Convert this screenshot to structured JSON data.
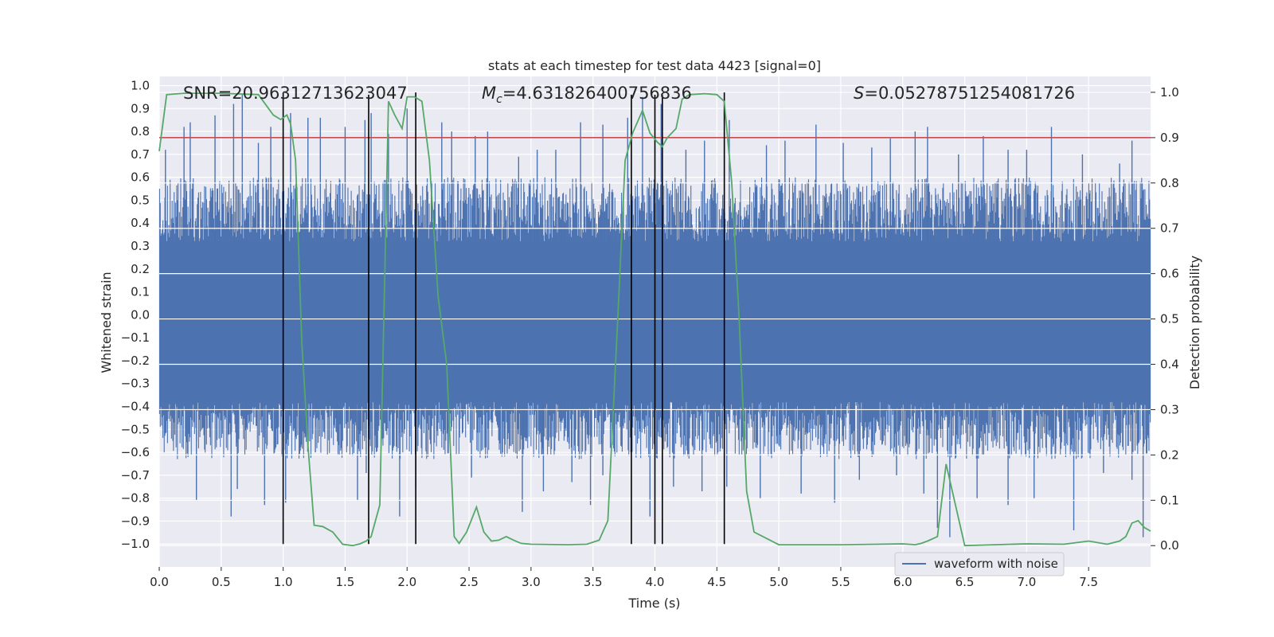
{
  "chart_data": {
    "type": "line",
    "title": "stats at each timestep for test data 4423 [signal=0]",
    "xlabel": "Time (s)",
    "ylabel": "Whitened strain",
    "y2label": "Detection probability",
    "xlim": [
      0,
      8
    ],
    "ylim": [
      -1.1,
      1.04
    ],
    "y2lim": [
      -0.047,
      1.035
    ],
    "xticks": [
      "0.0",
      "0.5",
      "1.0",
      "1.5",
      "2.0",
      "2.5",
      "3.0",
      "3.5",
      "4.0",
      "4.5",
      "5.0",
      "5.5",
      "6.0",
      "6.5",
      "7.0",
      "7.5"
    ],
    "yticks": [
      "1.0",
      "0.9",
      "0.8",
      "0.7",
      "0.6",
      "0.5",
      "0.4",
      "0.3",
      "0.2",
      "0.1",
      "0.0",
      "-0.1",
      "-0.2",
      "-0.3",
      "-0.4",
      "-0.5",
      "-0.6",
      "-0.7",
      "-0.8",
      "-0.9",
      "-1.0"
    ],
    "y2ticks": [
      "1.0",
      "0.9",
      "0.8",
      "0.7",
      "0.6",
      "0.5",
      "0.4",
      "0.3",
      "0.2",
      "0.1",
      "0.0"
    ],
    "grid": true,
    "legend_position": "lower-right",
    "annotations": {
      "snr": "SNR=20.96312713623047",
      "mc_symbol": "M",
      "mc_sub": "c",
      "mc_value": "=4.631826400756836",
      "s_symbol": "S",
      "s_value": "=0.05278751254081726"
    },
    "threshold": 0.9,
    "vlines": [
      {
        "x": 1.0,
        "y_top": 0.97
      },
      {
        "x": 1.69,
        "y_top": 0.96
      },
      {
        "x": 2.07,
        "y_top": 0.97
      },
      {
        "x": 3.81,
        "y_top": 0.96
      },
      {
        "x": 4.0,
        "y_top": 0.96
      },
      {
        "x": 4.06,
        "y_top": 0.96
      },
      {
        "x": 4.56,
        "y_top": 0.97
      }
    ],
    "series": [
      {
        "name": "waveform with noise",
        "axis": "left",
        "color": "#4c72b0",
        "band_low": -0.38,
        "band_high": 0.32,
        "spikes": [
          [
            0.05,
            0.72
          ],
          [
            0.2,
            0.82
          ],
          [
            0.25,
            0.84
          ],
          [
            0.45,
            0.87
          ],
          [
            0.6,
            0.92
          ],
          [
            0.67,
            0.96
          ],
          [
            0.8,
            0.75
          ],
          [
            0.9,
            0.82
          ],
          [
            1.06,
            0.88
          ],
          [
            1.2,
            0.86
          ],
          [
            1.3,
            0.86
          ],
          [
            1.5,
            0.82
          ],
          [
            1.66,
            0.85
          ],
          [
            1.71,
            0.88
          ],
          [
            1.85,
            0.79
          ],
          [
            2.0,
            0.9
          ],
          [
            2.28,
            0.84
          ],
          [
            2.36,
            0.8
          ],
          [
            2.55,
            0.78
          ],
          [
            2.65,
            0.8
          ],
          [
            2.9,
            0.69
          ],
          [
            3.05,
            0.72
          ],
          [
            3.2,
            0.72
          ],
          [
            3.4,
            0.84
          ],
          [
            3.58,
            0.83
          ],
          [
            3.78,
            0.86
          ],
          [
            3.9,
            0.95
          ],
          [
            4.05,
            0.92
          ],
          [
            4.25,
            0.72
          ],
          [
            4.4,
            0.76
          ],
          [
            4.6,
            0.85
          ],
          [
            4.9,
            0.74
          ],
          [
            5.05,
            0.76
          ],
          [
            5.3,
            0.83
          ],
          [
            5.52,
            0.75
          ],
          [
            5.75,
            0.73
          ],
          [
            5.9,
            0.77
          ],
          [
            6.1,
            0.8
          ],
          [
            6.2,
            0.82
          ],
          [
            6.45,
            0.7
          ],
          [
            6.65,
            0.78
          ],
          [
            6.85,
            0.72
          ],
          [
            7.0,
            0.72
          ],
          [
            7.2,
            0.82
          ],
          [
            7.45,
            0.7
          ],
          [
            7.75,
            0.66
          ],
          [
            7.85,
            0.76
          ],
          [
            0.3,
            -0.81
          ],
          [
            0.58,
            -0.88
          ],
          [
            0.63,
            -0.76
          ],
          [
            0.85,
            -0.83
          ],
          [
            1.02,
            -0.82
          ],
          [
            1.26,
            -0.6
          ],
          [
            1.6,
            -0.81
          ],
          [
            1.67,
            -0.69
          ],
          [
            1.94,
            -0.88
          ],
          [
            2.07,
            -0.76
          ],
          [
            2.33,
            -0.55
          ],
          [
            2.52,
            -0.71
          ],
          [
            2.93,
            -0.86
          ],
          [
            3.1,
            -0.77
          ],
          [
            3.33,
            -0.73
          ],
          [
            3.48,
            -0.83
          ],
          [
            3.58,
            -0.7
          ],
          [
            3.96,
            -0.88
          ],
          [
            4.15,
            -0.75
          ],
          [
            4.38,
            -0.77
          ],
          [
            4.58,
            -0.75
          ],
          [
            4.85,
            -0.8
          ],
          [
            5.18,
            -0.78
          ],
          [
            5.45,
            -0.82
          ],
          [
            5.65,
            -0.72
          ],
          [
            5.95,
            -0.7
          ],
          [
            6.17,
            -0.78
          ],
          [
            6.28,
            -0.93
          ],
          [
            6.38,
            -0.97
          ],
          [
            6.6,
            -0.8
          ],
          [
            6.85,
            -0.83
          ],
          [
            7.06,
            -0.8
          ],
          [
            7.38,
            -0.94
          ],
          [
            7.62,
            -0.69
          ],
          [
            7.85,
            -0.72
          ],
          [
            7.94,
            -0.97
          ]
        ]
      },
      {
        "name": "detection probability",
        "axis": "right",
        "color": "#55a868",
        "x": [
          0.0,
          0.06,
          0.2,
          0.5,
          0.8,
          0.92,
          0.98,
          1.03,
          1.06,
          1.1,
          1.15,
          1.2,
          1.25,
          1.32,
          1.4,
          1.48,
          1.56,
          1.62,
          1.67,
          1.71,
          1.78,
          1.85,
          1.9,
          1.96,
          2.0,
          2.06,
          2.12,
          2.18,
          2.25,
          2.32,
          2.38,
          2.42,
          2.48,
          2.56,
          2.62,
          2.68,
          2.74,
          2.8,
          2.86,
          2.92,
          3.0,
          3.3,
          3.45,
          3.55,
          3.62,
          3.7,
          3.76,
          3.82,
          3.9,
          3.96,
          4.02,
          4.06,
          4.1,
          4.17,
          4.22,
          4.28,
          4.4,
          4.5,
          4.56,
          4.62,
          4.68,
          4.74,
          4.8,
          5.0,
          5.5,
          5.8,
          6.0,
          6.1,
          6.15,
          6.2,
          6.28,
          6.35,
          6.5,
          7.0,
          7.3,
          7.5,
          7.65,
          7.75,
          7.8,
          7.85,
          7.9,
          7.95,
          8.0
        ],
        "y": [
          0.87,
          0.995,
          0.998,
          0.998,
          0.995,
          0.95,
          0.94,
          0.95,
          0.93,
          0.85,
          0.45,
          0.22,
          0.045,
          0.042,
          0.03,
          0.003,
          0.0,
          0.004,
          0.01,
          0.02,
          0.09,
          0.98,
          0.95,
          0.92,
          0.99,
          0.99,
          0.98,
          0.85,
          0.55,
          0.4,
          0.02,
          0.005,
          0.03,
          0.085,
          0.03,
          0.01,
          0.012,
          0.02,
          0.012,
          0.005,
          0.003,
          0.002,
          0.003,
          0.012,
          0.055,
          0.5,
          0.85,
          0.91,
          0.96,
          0.91,
          0.89,
          0.88,
          0.9,
          0.92,
          0.985,
          0.995,
          0.997,
          0.995,
          0.98,
          0.8,
          0.5,
          0.12,
          0.03,
          0.002,
          0.002,
          0.003,
          0.004,
          0.002,
          0.005,
          0.01,
          0.02,
          0.18,
          0.0,
          0.004,
          0.003,
          0.01,
          0.003,
          0.01,
          0.02,
          0.05,
          0.055,
          0.04,
          0.032
        ]
      }
    ]
  }
}
